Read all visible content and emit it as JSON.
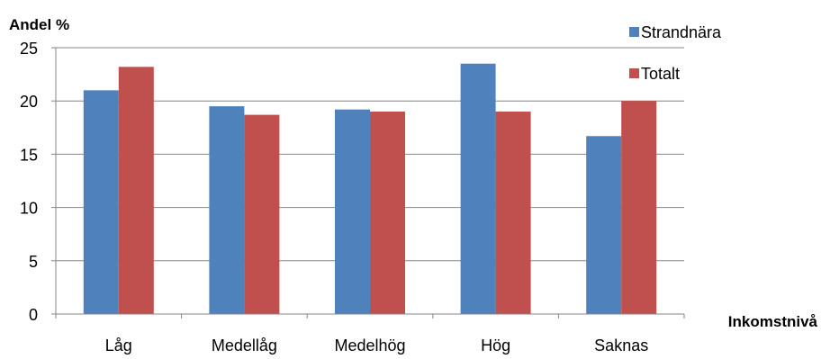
{
  "chart_data": {
    "type": "bar",
    "title": "",
    "ylabel": "Andel %",
    "xlabel": "Inkomstnivå",
    "categories": [
      "Låg",
      "Medellåg",
      "Medelhög",
      "Hög",
      "Saknas"
    ],
    "series": [
      {
        "name": "Strandnära",
        "color": "#4f81bd",
        "values": [
          21.0,
          19.5,
          19.2,
          23.5,
          16.7
        ]
      },
      {
        "name": "Totalt",
        "color": "#c0504d",
        "values": [
          23.2,
          18.7,
          19.0,
          19.0,
          20.0
        ]
      }
    ],
    "ylim": [
      0,
      25
    ],
    "yticks": [
      "0",
      "5",
      "10",
      "15",
      "20",
      "25"
    ],
    "grid": true,
    "legend_position": "top-right"
  }
}
